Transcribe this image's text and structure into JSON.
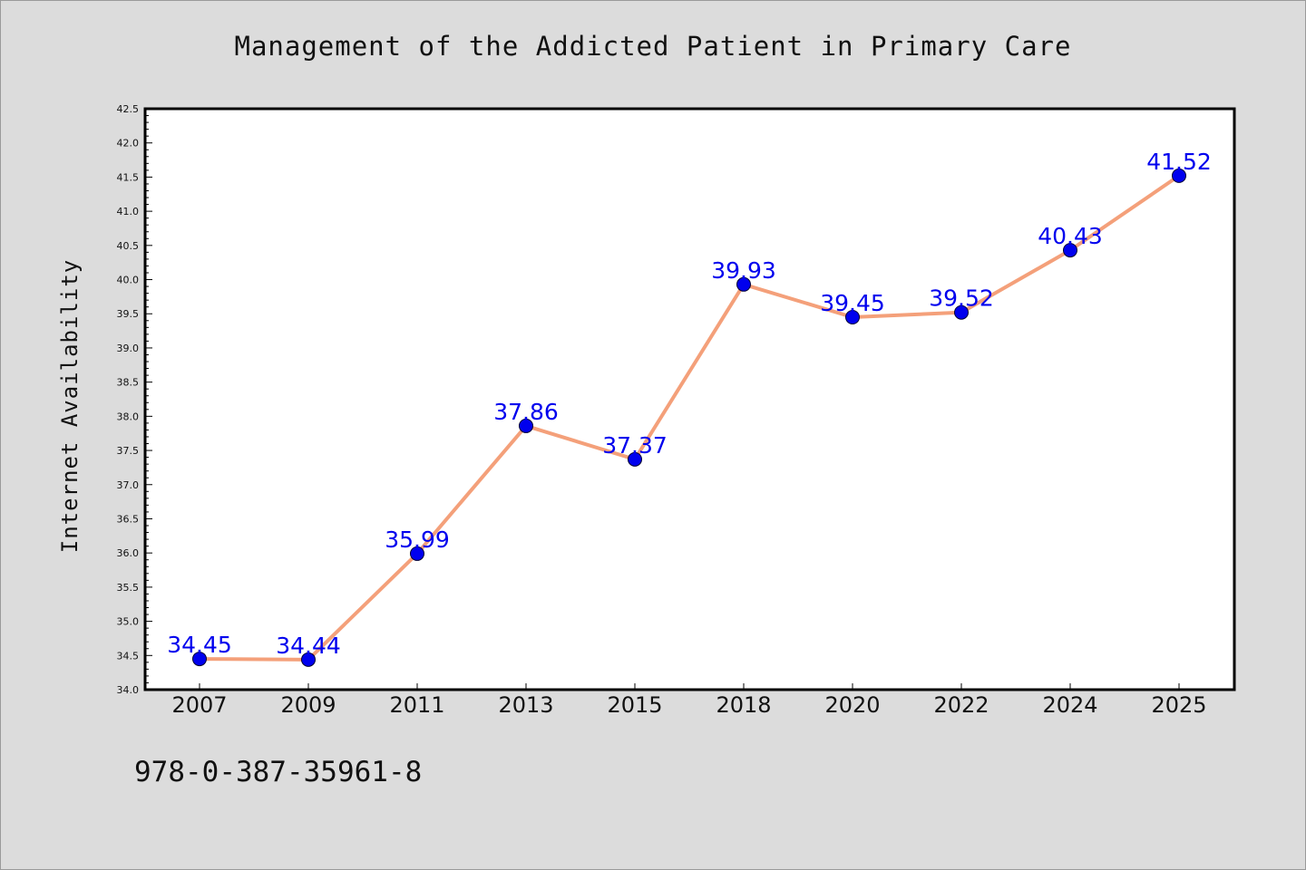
{
  "colors": {
    "background": "#dcdcdc",
    "plot_background": "#ffffff",
    "line": "#f4a07a",
    "marker": "#0000ee",
    "data_label": "#0000ee"
  },
  "footer": {
    "code": "978-0-387-35961-8"
  },
  "chart_data": {
    "type": "line",
    "title": "Management of the Addicted Patient in Primary Care",
    "xlabel": "",
    "ylabel": "Internet Availability",
    "categories": [
      "2007",
      "2009",
      "2011",
      "2013",
      "2015",
      "2018",
      "2020",
      "2022",
      "2024",
      "2025"
    ],
    "series": [
      {
        "values": [
          34.45,
          34.44,
          35.99,
          37.86,
          37.37,
          39.93,
          39.45,
          39.52,
          40.43,
          41.52
        ]
      }
    ],
    "data_labels": [
      "34.45",
      "34.44",
      "35.99",
      "37.86",
      "37.37",
      "39.93",
      "39.45",
      "39.52",
      "40.43",
      "41.52"
    ],
    "ylim": [
      34.0,
      42.5
    ],
    "ytick_step": 0.5,
    "ytick_minor_step": 0.1,
    "grid": false,
    "legend": "none"
  }
}
